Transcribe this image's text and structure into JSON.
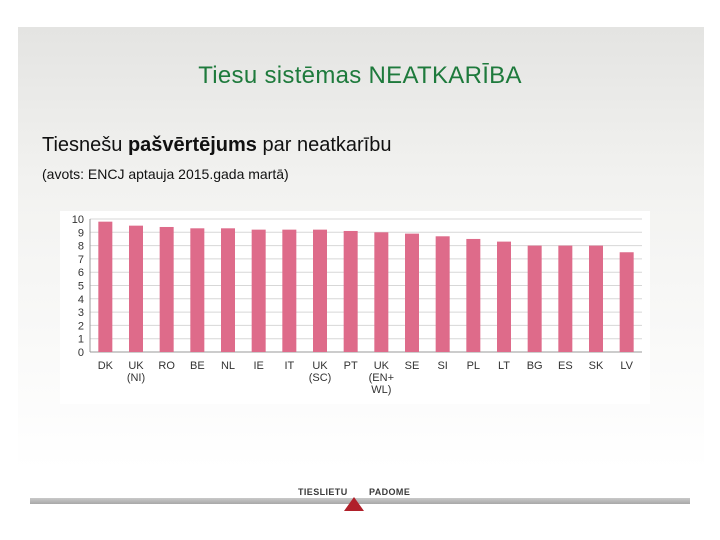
{
  "slide": {
    "title": "Tiesu sistēmas NEATKARĪBA",
    "subtitle_pre": "Tiesnešu ",
    "subtitle_bold": "pašvērtējums",
    "subtitle_post": " par neatkarību",
    "source": "(avots: ENCJ aptauja 2015.gada martā)",
    "footer_left": "TIESLIETU",
    "footer_right": "PADOME"
  },
  "colors": {
    "bar": "#de6b8a",
    "title": "#1e7a3c",
    "logo_accent": "#b0202a"
  },
  "chart_data": {
    "type": "bar",
    "categories": [
      [
        "DK"
      ],
      [
        "UK",
        "(NI)"
      ],
      [
        "RO"
      ],
      [
        "BE"
      ],
      [
        "NL"
      ],
      [
        "IE"
      ],
      [
        "IT"
      ],
      [
        "UK",
        "(SC)"
      ],
      [
        "PT"
      ],
      [
        "UK",
        "(EN+",
        "WL)"
      ],
      [
        "SE"
      ],
      [
        "SI"
      ],
      [
        "PL"
      ],
      [
        "LT"
      ],
      [
        "BG"
      ],
      [
        "ES"
      ],
      [
        "SK"
      ],
      [
        "LV"
      ]
    ],
    "values": [
      9.8,
      9.5,
      9.4,
      9.3,
      9.3,
      9.2,
      9.2,
      9.2,
      9.1,
      9.0,
      8.9,
      8.7,
      8.5,
      8.3,
      8.0,
      8.0,
      8.0,
      7.5
    ],
    "yticks": [
      "0",
      "1",
      "2",
      "3",
      "4",
      "5",
      "6",
      "7",
      "8",
      "9",
      "10"
    ],
    "ylim": [
      0,
      10
    ],
    "title": "",
    "xlabel": "",
    "ylabel": ""
  }
}
